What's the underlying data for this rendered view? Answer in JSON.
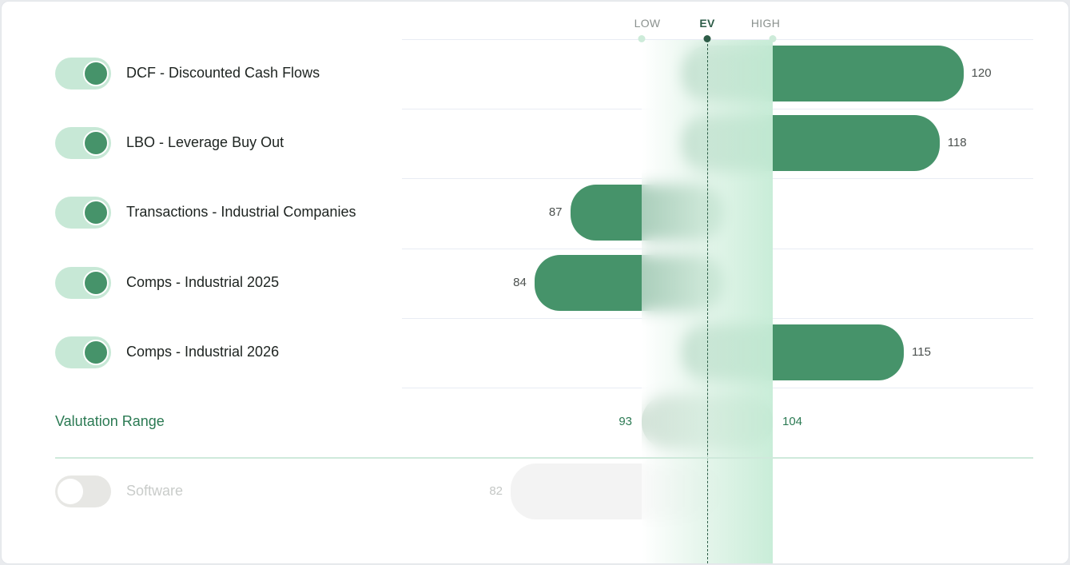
{
  "header": {
    "low": "LOW",
    "ev": "EV",
    "high": "HIGH"
  },
  "rows": [
    {
      "label": "DCF - Discounted Cash Flows",
      "enabled": true,
      "value": "120"
    },
    {
      "label": "LBO - Leverage Buy Out",
      "enabled": true,
      "value": "118"
    },
    {
      "label": "Transactions - Industrial Companies",
      "enabled": true,
      "value": "87"
    },
    {
      "label": "Comps - Industrial 2025",
      "enabled": true,
      "value": "84"
    },
    {
      "label": "Comps - Industrial 2026",
      "enabled": true,
      "value": "115"
    }
  ],
  "range": {
    "label": "Valutation Range",
    "low": "93",
    "high": "104"
  },
  "disabled_row": {
    "label": "Software",
    "enabled": false,
    "value": "82"
  },
  "colors": {
    "bar": "#46936a",
    "toggle_track_on": "#c7e8d6",
    "toggle_knob_on": "#46936a",
    "toggle_track_off": "#e7e7e4",
    "disabled_bar": "#f3f3f3",
    "range_bar": "#9dbfa9",
    "ev_dark": "#2e5d48",
    "band_marker": "#cdebd9",
    "divider": "#cfe9db"
  },
  "chart_data": {
    "type": "bar",
    "categories": [
      "DCF - Discounted Cash Flows",
      "LBO - Leverage Buy Out",
      "Transactions - Industrial Companies",
      "Comps - Industrial 2025",
      "Comps - Industrial 2026",
      "Software"
    ],
    "values": [
      120,
      118,
      87,
      84,
      115,
      82
    ],
    "range": {
      "low": 93,
      "high": 104
    },
    "xlim": [
      70,
      130
    ],
    "legend": "none",
    "grid": false
  }
}
